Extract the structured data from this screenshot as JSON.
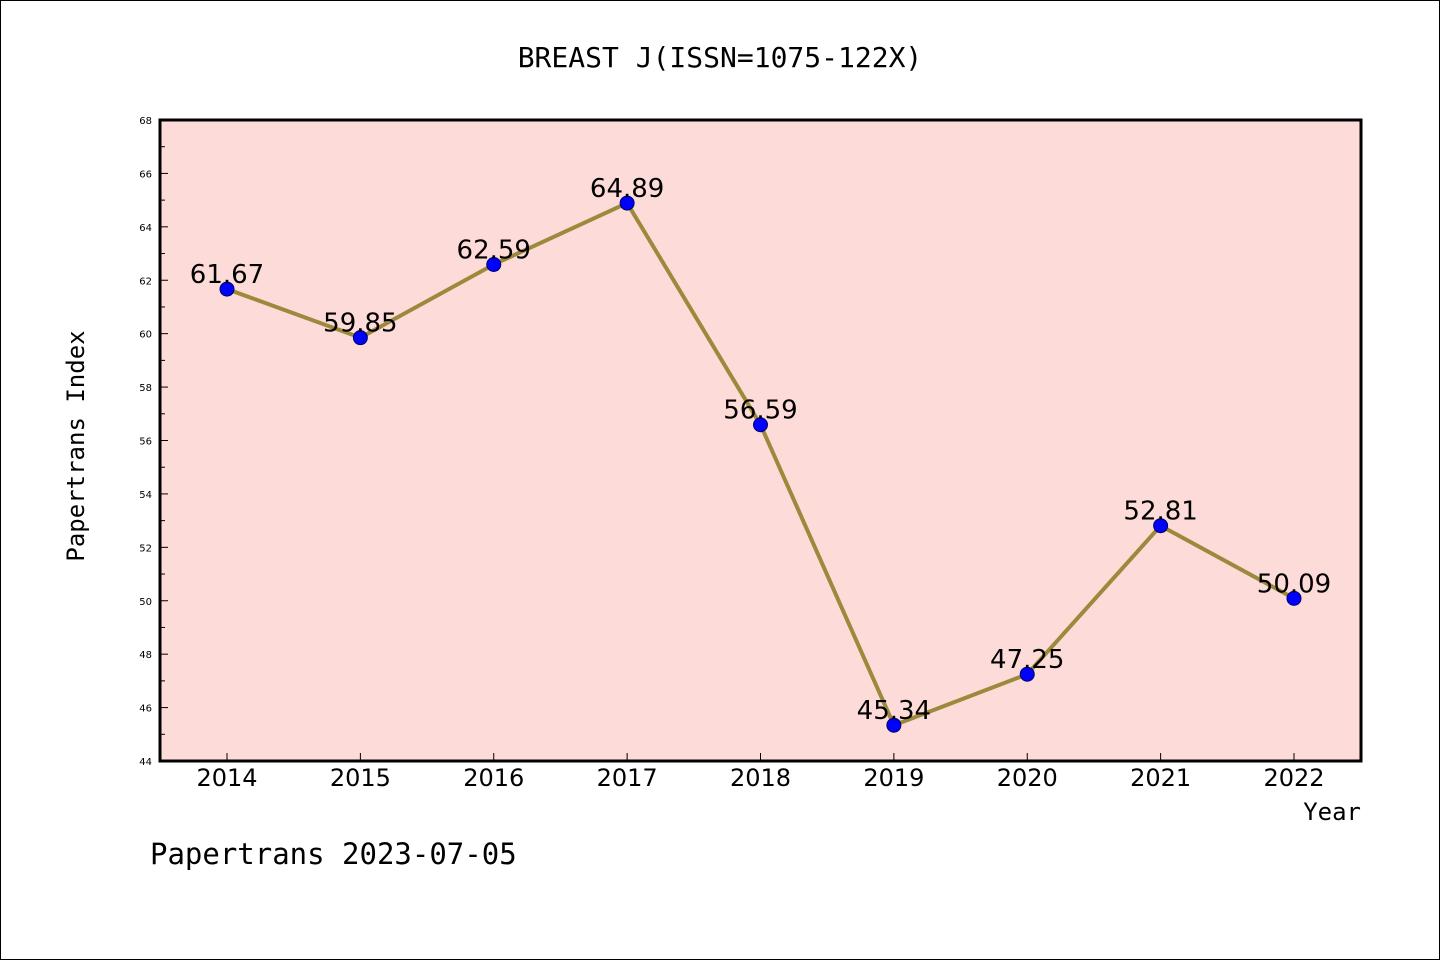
{
  "chart_data": {
    "type": "line",
    "title": "BREAST J(ISSN=1075-122X)",
    "xlabel": "Year",
    "ylabel": "Papertrans Index",
    "categories": [
      "2014",
      "2015",
      "2016",
      "2017",
      "2018",
      "2019",
      "2020",
      "2021",
      "2022"
    ],
    "series": [
      {
        "values": [
          61.67,
          59.85,
          62.59,
          64.89,
          56.59,
          45.34,
          47.25,
          52.81,
          50.09
        ],
        "labels": [
          "61.67",
          "59.85",
          "62.59",
          "64.89",
          "56.59",
          "45.34",
          "47.25",
          "52.81",
          "50.09"
        ]
      }
    ],
    "ylim": [
      44,
      68
    ],
    "yticks": [
      44,
      46,
      48,
      50,
      52,
      54,
      56,
      58,
      60,
      62,
      64,
      66,
      68
    ],
    "grid": false,
    "colors": {
      "plot_background": "#fddbd8",
      "line": "#9b8a3c",
      "marker": "#0000ff"
    }
  },
  "footer": "Papertrans 2023-07-05"
}
